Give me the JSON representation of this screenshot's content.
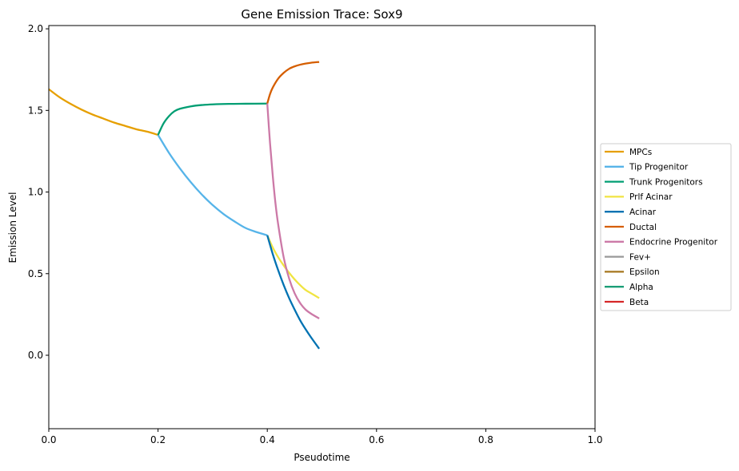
{
  "chart_data": {
    "type": "line",
    "title": "Gene Emission Trace: Sox9",
    "xlabel": "Pseudotime",
    "ylabel": "Emission Level",
    "xlim": [
      0.0,
      1.0
    ],
    "ylim": [
      -0.45,
      2.02
    ],
    "xticks": [
      "0.0",
      "0.2",
      "0.4",
      "0.6",
      "0.8",
      "1.0"
    ],
    "yticks": [
      "0.0",
      "0.5",
      "1.0",
      "1.5",
      "2.0"
    ],
    "grid": false,
    "legend_position": "right",
    "series": [
      {
        "name": "MPCs",
        "color": "#E69F00",
        "x": [
          0.0,
          0.02,
          0.04,
          0.06,
          0.08,
          0.1,
          0.12,
          0.14,
          0.16,
          0.18,
          0.2
        ],
        "y": [
          1.63,
          1.58,
          1.54,
          1.505,
          1.475,
          1.45,
          1.425,
          1.405,
          1.385,
          1.37,
          1.35
        ]
      },
      {
        "name": "Tip Progenitor",
        "color": "#56B4E9",
        "x": [
          0.2,
          0.22,
          0.24,
          0.26,
          0.28,
          0.3,
          0.32,
          0.34,
          0.36,
          0.38,
          0.4
        ],
        "y": [
          1.35,
          1.24,
          1.145,
          1.06,
          0.985,
          0.92,
          0.865,
          0.82,
          0.78,
          0.755,
          0.735
        ]
      },
      {
        "name": "Trunk Progenitors",
        "color": "#009E73",
        "x": [
          0.2,
          0.21,
          0.22,
          0.23,
          0.24,
          0.26,
          0.28,
          0.3,
          0.33,
          0.36,
          0.4
        ],
        "y": [
          1.35,
          1.42,
          1.465,
          1.495,
          1.51,
          1.525,
          1.533,
          1.537,
          1.54,
          1.541,
          1.542
        ]
      },
      {
        "name": "Prlf Acinar",
        "color": "#F0E442",
        "x": [
          0.4,
          0.41,
          0.42,
          0.43,
          0.44,
          0.45,
          0.46,
          0.47,
          0.48,
          0.495
        ],
        "y": [
          0.735,
          0.66,
          0.6,
          0.55,
          0.505,
          0.465,
          0.43,
          0.4,
          0.38,
          0.35
        ]
      },
      {
        "name": "Acinar",
        "color": "#0072B2",
        "x": [
          0.4,
          0.41,
          0.42,
          0.43,
          0.44,
          0.45,
          0.46,
          0.47,
          0.48,
          0.495
        ],
        "y": [
          0.735,
          0.62,
          0.52,
          0.43,
          0.35,
          0.28,
          0.215,
          0.16,
          0.11,
          0.04
        ]
      },
      {
        "name": "Ductal",
        "color": "#D55E00",
        "x": [
          0.4,
          0.405,
          0.41,
          0.42,
          0.43,
          0.44,
          0.45,
          0.46,
          0.47,
          0.48,
          0.495
        ],
        "y": [
          1.542,
          1.6,
          1.64,
          1.695,
          1.73,
          1.755,
          1.77,
          1.78,
          1.787,
          1.792,
          1.797
        ]
      },
      {
        "name": "Endocrine Progenitor",
        "color": "#CC79A7",
        "x": [
          0.4,
          0.405,
          0.41,
          0.415,
          0.42,
          0.43,
          0.44,
          0.45,
          0.46,
          0.47,
          0.48,
          0.495
        ],
        "y": [
          1.542,
          1.3,
          1.1,
          0.93,
          0.8,
          0.6,
          0.47,
          0.38,
          0.32,
          0.28,
          0.255,
          0.225
        ]
      },
      {
        "name": "Fev+",
        "color": "#999999",
        "x": [],
        "y": []
      },
      {
        "name": "Epsilon",
        "color": "#A6761D",
        "x": [],
        "y": []
      },
      {
        "name": "Alpha",
        "color": "#1B9E77",
        "x": [],
        "y": []
      },
      {
        "name": "Beta",
        "color": "#D62728",
        "x": [],
        "y": []
      }
    ]
  }
}
